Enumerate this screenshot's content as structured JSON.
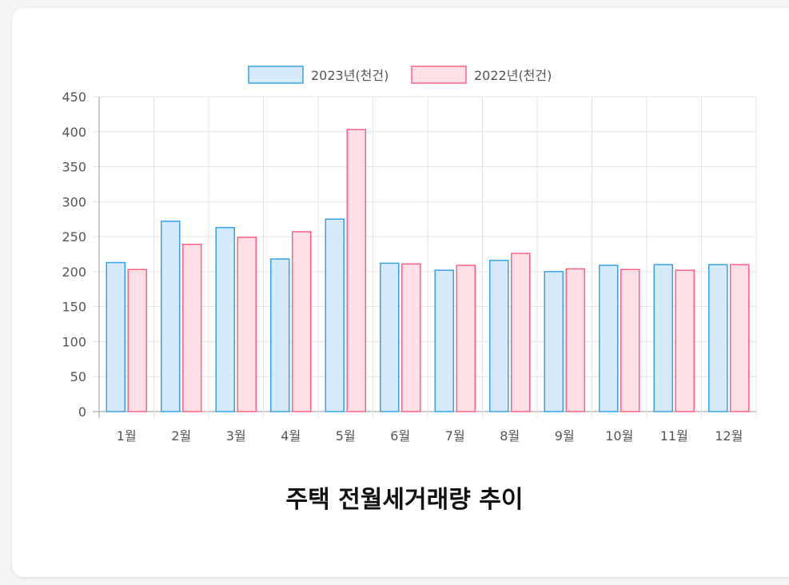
{
  "chart_data": {
    "type": "bar",
    "title": "주택 전월세거래량 추이",
    "categories": [
      "1월",
      "2월",
      "3월",
      "4월",
      "5월",
      "6월",
      "7월",
      "8월",
      "9월",
      "10월",
      "11월",
      "12월"
    ],
    "series": [
      {
        "name": "2023년(천건)",
        "values": [
          213,
          272,
          263,
          218,
          275,
          212,
          202,
          216,
          200,
          209,
          210,
          210
        ],
        "color": "#36a2eb",
        "fill": "#d7eafb"
      },
      {
        "name": "2022년(천건)",
        "values": [
          203,
          239,
          249,
          257,
          403,
          211,
          209,
          226,
          204,
          203,
          202,
          210
        ],
        "color": "#ff6384",
        "fill": "#ffe0e6"
      }
    ],
    "ylim": [
      0,
      450
    ],
    "yticks": [
      0,
      50,
      100,
      150,
      200,
      250,
      300,
      350,
      400,
      450
    ],
    "grid": true,
    "legend": "top"
  }
}
